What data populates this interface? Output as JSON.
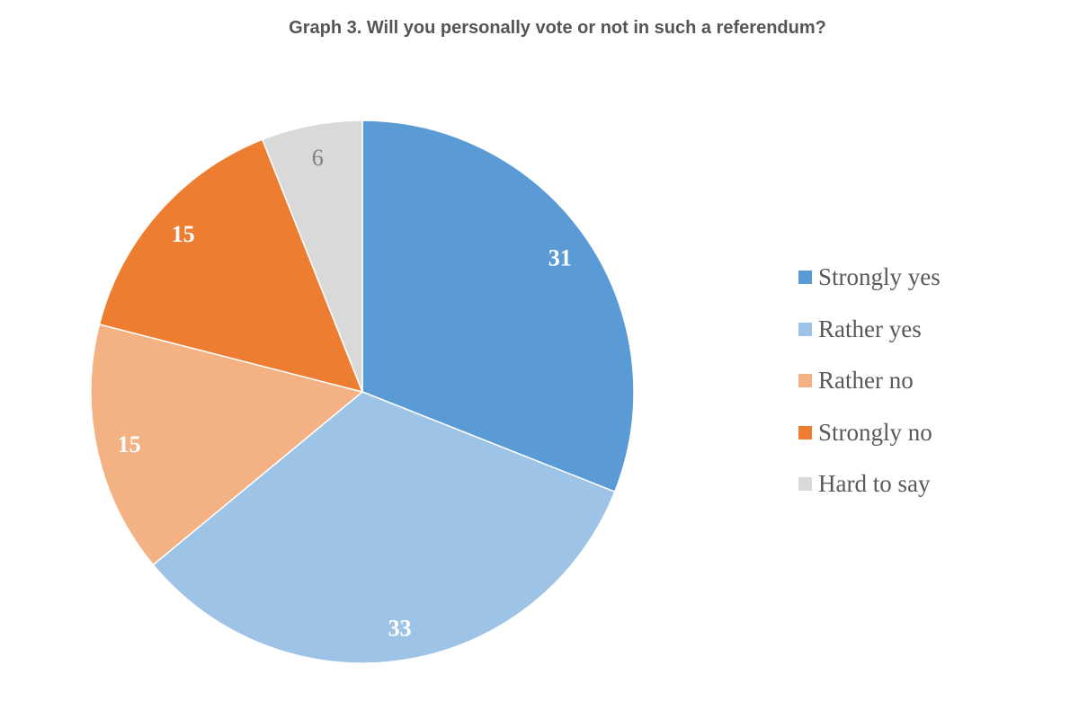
{
  "chart_data": {
    "type": "pie",
    "title": "Graph 3. Will you personally vote or not in such a referendum?",
    "categories": [
      "Strongly yes",
      "Rather yes",
      "Rather no",
      "Strongly no",
      "Hard to say"
    ],
    "values": [
      31,
      33,
      15,
      15,
      6
    ],
    "colors": [
      "#5B9BD5",
      "#9DC3E6",
      "#F4B183",
      "#ED7D31",
      "#D9D9D9"
    ],
    "label_colors": [
      "#ffffff",
      "#ffffff",
      "#ffffff",
      "#ffffff",
      "#7f7f7f"
    ],
    "start": "top, clockwise",
    "legend_position": "right"
  }
}
